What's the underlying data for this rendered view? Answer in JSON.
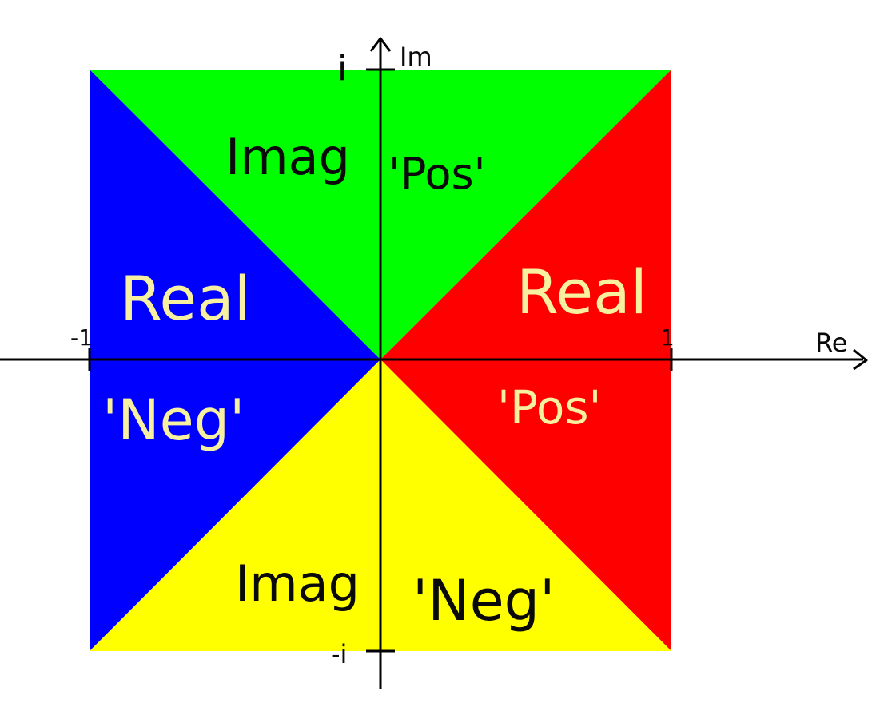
{
  "diagram": {
    "axes": {
      "x_label": "Re",
      "y_label": "Im",
      "x_ticks": {
        "neg": "-1",
        "pos": "1"
      },
      "y_ticks": {
        "pos": "i",
        "neg": "-i"
      }
    },
    "regions": {
      "top": {
        "color": "#00ff00",
        "label_left": "Imag",
        "label_right": "'Pos'"
      },
      "right": {
        "color": "#ff0000",
        "label_top": "Real",
        "label_bottom": "'Pos'"
      },
      "bottom": {
        "color": "#ffff00",
        "label_left": "Imag",
        "label_right": "'Neg'"
      },
      "left": {
        "color": "#0000ff",
        "label_top": "Real",
        "label_bottom": "'Neg'"
      }
    }
  }
}
